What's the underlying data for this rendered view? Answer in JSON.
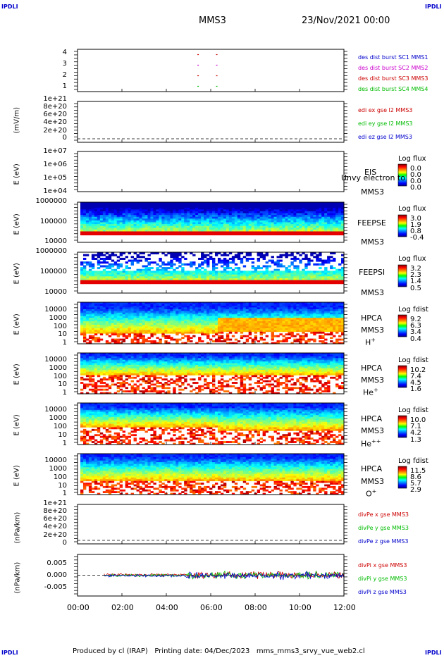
{
  "corner_marks": [
    "IPDLI",
    "IPDLI",
    "IPDLI",
    "IPDLI"
  ],
  "header": {
    "mission": "MMS3",
    "datetime": "23/Nov/2021 00:00"
  },
  "footer": {
    "text": "Produced by cl (IRAP)   Printing date: 04/Dec/2023   mms_mms3_srvy_vue_web2.cl"
  },
  "x_axis": {
    "ticks": [
      "00:00",
      "02:00",
      "04:00",
      "06:00",
      "08:00",
      "10:00",
      "12:00"
    ]
  },
  "colors": {
    "mms1": "#0000cc",
    "mms2": "#cc00cc",
    "mms3": "#cc0000",
    "mms4": "#00bb00"
  },
  "chart_data": [
    {
      "type": "scatter",
      "ylim": [
        0.5,
        4.5
      ],
      "ytick_labels": [
        "1",
        "2",
        "3",
        "4"
      ],
      "legend": [
        {
          "text": "des dist burst SC1 MMS1",
          "color": "#0000cc"
        },
        {
          "text": "des dist burst SC2 MMS2",
          "color": "#cc00cc"
        },
        {
          "text": "des dist burst SC3 MMS3",
          "color": "#cc0000"
        },
        {
          "text": "des dist burst SC4 MMS4",
          "color": "#00bb00"
        }
      ]
    },
    {
      "type": "line",
      "ylabel": "(mV/m)",
      "ylim": [
        0,
        1.1e+21
      ],
      "ytick_labels": [
        "0",
        "2e+20",
        "4e+20",
        "6e+20",
        "8e+20",
        "1e+21"
      ],
      "legend": [
        {
          "text": "edi ex gse l2 MMS3",
          "color": "#cc0000"
        },
        {
          "text": "edi ey gse l2 MMS3",
          "color": "#00bb00"
        },
        {
          "text": "edi ez gse l2 MMS3",
          "color": "#0000cc"
        }
      ]
    },
    {
      "type": "heatmap",
      "ylabel": "E (eV)",
      "ytick_labels": [
        "1e+04",
        "1e+05",
        "1e+06",
        "1e+07"
      ],
      "labels": [
        "EIS",
        "MMS3"
      ],
      "overlay_text": "Unvy electron to",
      "colorbar": {
        "title": "Log flux",
        "ticks": [
          "0.0",
          "0.0",
          "0.0",
          "0.0"
        ]
      }
    },
    {
      "type": "heatmap",
      "ylabel": "E (eV)",
      "ytick_labels": [
        "10000",
        "100000",
        "1000000"
      ],
      "labels": [
        "FEEPSE",
        "MMS3"
      ],
      "colorbar": {
        "title": "Log flux",
        "ticks": [
          "3.0",
          "1.9",
          "0.8",
          "-0.4"
        ]
      }
    },
    {
      "type": "heatmap",
      "ylabel": "E (eV)",
      "ytick_labels": [
        "10000",
        "100000",
        "1000000"
      ],
      "labels": [
        "FEEPSI",
        "MMS3"
      ],
      "colorbar": {
        "title": "Log flux",
        "ticks": [
          "3.2",
          "2.3",
          "1.4",
          "0.5"
        ]
      }
    },
    {
      "type": "heatmap",
      "ylabel": "E (eV)",
      "ytick_labels": [
        "1",
        "10",
        "100",
        "1000",
        "10000"
      ],
      "labels": [
        "HPCA",
        "MMS3"
      ],
      "species": "H",
      "charge": "+",
      "colorbar": {
        "title": "Log fdist",
        "ticks": [
          "9.2",
          "6.3",
          "3.4",
          "0.4"
        ]
      }
    },
    {
      "type": "heatmap",
      "ylabel": "E (eV)",
      "ytick_labels": [
        "1",
        "10",
        "100",
        "1000",
        "10000"
      ],
      "labels": [
        "HPCA",
        "MMS3"
      ],
      "species": "He",
      "charge": "+",
      "colorbar": {
        "title": "Log fdist",
        "ticks": [
          "10.2",
          "7.4",
          "4.5",
          "1.6"
        ]
      }
    },
    {
      "type": "heatmap",
      "ylabel": "E (eV)",
      "ytick_labels": [
        "1",
        "10",
        "100",
        "1000",
        "10000"
      ],
      "labels": [
        "HPCA",
        "MMS3"
      ],
      "species": "He",
      "charge": "++",
      "colorbar": {
        "title": "Log fdist",
        "ticks": [
          "10.0",
          "7.1",
          "4.2",
          "1.3"
        ]
      }
    },
    {
      "type": "heatmap",
      "ylabel": "E (eV)",
      "ytick_labels": [
        "1",
        "10",
        "100",
        "1000",
        "10000"
      ],
      "labels": [
        "HPCA",
        "MMS3"
      ],
      "species": "O",
      "charge": "+",
      "colorbar": {
        "title": "Log fdist",
        "ticks": [
          "11.5",
          "8.6",
          "5.7",
          "2.9"
        ]
      }
    },
    {
      "type": "line",
      "ylabel": "(nPa/km)",
      "ylim": [
        0,
        1.1e+21
      ],
      "ytick_labels": [
        "0",
        "2e+20",
        "4e+20",
        "6e+20",
        "8e+20",
        "1e+21"
      ],
      "legend": [
        {
          "text": "divPe x gse MMS3",
          "color": "#cc0000"
        },
        {
          "text": "divPe y gse MMS3",
          "color": "#00bb00"
        },
        {
          "text": "divPe z gse MMS3",
          "color": "#0000cc"
        }
      ]
    },
    {
      "type": "line",
      "ylabel": "(nPa/km)",
      "ylim": [
        -0.0075,
        0.0075
      ],
      "ytick_labels": [
        "-0.005",
        "0.000",
        "0.005"
      ],
      "legend": [
        {
          "text": "divPi x gse MMS3",
          "color": "#cc0000"
        },
        {
          "text": "divPi y gse MMS3",
          "color": "#00bb00"
        },
        {
          "text": "divPi z gse MMS3",
          "color": "#0000cc"
        }
      ]
    }
  ]
}
